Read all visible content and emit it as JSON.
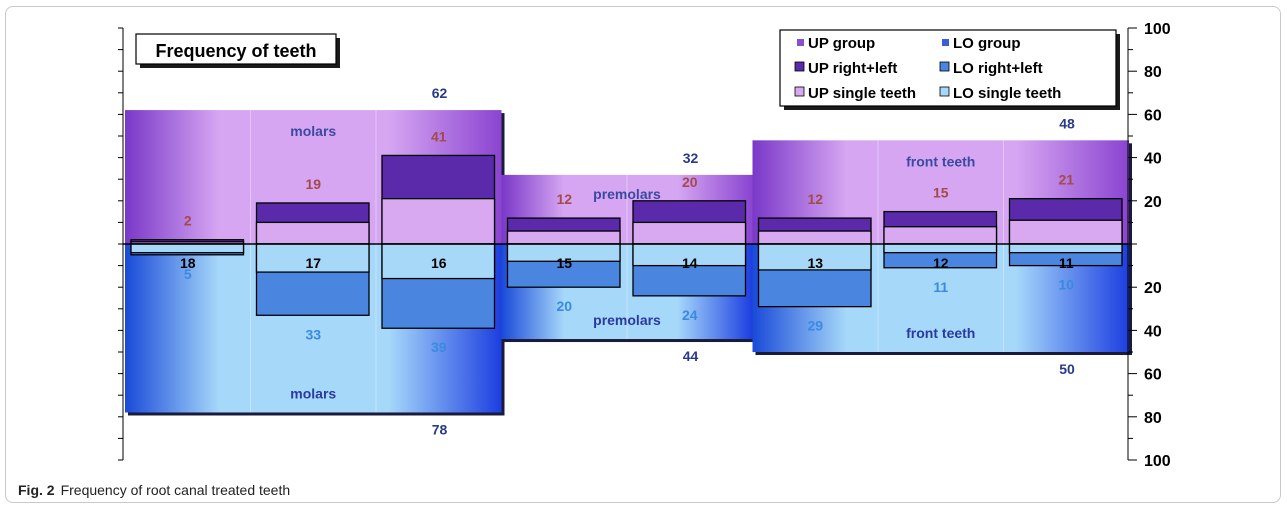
{
  "figure": {
    "caption_label": "Fig. 2",
    "caption_text": "Frequency of root canal treated teeth"
  },
  "chart_data": {
    "type": "bar",
    "title": "Frequency of teeth",
    "ylim": [
      -100,
      100
    ],
    "yticks_labels": [
      "100",
      "80",
      "60",
      "40",
      "20",
      "20",
      "40",
      "60",
      "80",
      "100"
    ],
    "yticks_values": [
      100,
      80,
      60,
      40,
      20,
      -20,
      -40,
      -60,
      -80,
      -100
    ],
    "legend": {
      "placement": "top-right",
      "entries": [
        {
          "label": "UP group",
          "color": "#8a4fd0"
        },
        {
          "label": "LO group",
          "color": "#3a5fd8"
        },
        {
          "label": "UP right+left",
          "color": "#5a2aaa"
        },
        {
          "label": "LO right+left",
          "color": "#4a86e0"
        },
        {
          "label": "UP single teeth",
          "color": "#d8a8f0"
        },
        {
          "label": "LO single teeth",
          "color": "#a8d8f8"
        }
      ]
    },
    "groups": [
      {
        "name": "molars",
        "up_total": 62,
        "lo_total": 78,
        "up_label": "62",
        "lo_label": "78"
      },
      {
        "name": "premolars",
        "up_total": 32,
        "lo_total": 44,
        "up_label": "32",
        "lo_label": "44"
      },
      {
        "name": "front teeth",
        "up_total": 48,
        "lo_total": 50,
        "up_label": "48",
        "lo_label": "50"
      }
    ],
    "teeth": [
      {
        "tooth": "18",
        "up_right_left": 2,
        "lo_right_left": 5
      },
      {
        "tooth": "17",
        "up_right_left": 19,
        "lo_right_left": 33
      },
      {
        "tooth": "16",
        "up_right_left": 41,
        "lo_right_left": 39
      },
      {
        "tooth": "15",
        "up_right_left": 12,
        "lo_right_left": 20
      },
      {
        "tooth": "14",
        "up_right_left": 20,
        "lo_right_left": 24
      },
      {
        "tooth": "13",
        "up_right_left": 12,
        "lo_right_left": 29
      },
      {
        "tooth": "12",
        "up_right_left": 15,
        "lo_right_left": 11
      },
      {
        "tooth": "11",
        "up_right_left": 21,
        "lo_right_left": 10
      }
    ],
    "colors": {
      "up_group": "#8a4fd0",
      "lo_group": "#3a5fd8",
      "up_right_left": "#5a2aaa",
      "lo_right_left": "#4a86e0",
      "up_single": "#d8a8f0",
      "lo_single": "#a8d8f8",
      "up_text": "#a44a4a",
      "lo_text": "#3a8ae0",
      "total_text": "#2a3a8a"
    }
  }
}
